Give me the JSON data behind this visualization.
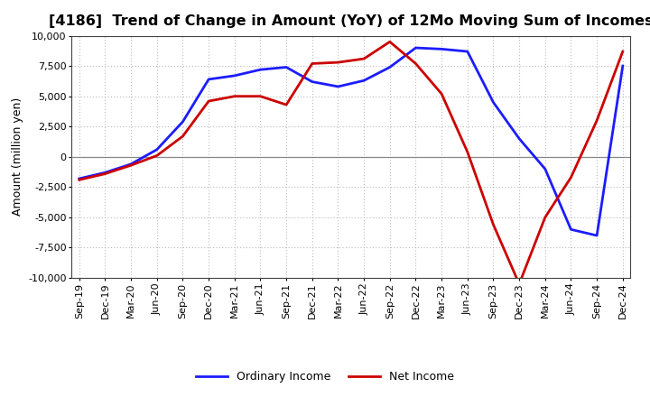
{
  "title": "[4186]  Trend of Change in Amount (YoY) of 12Mo Moving Sum of Incomes",
  "ylabel": "Amount (million yen)",
  "background_color": "#ffffff",
  "plot_background": "#ffffff",
  "grid_color": "#bbbbbb",
  "x_labels": [
    "Sep-19",
    "Dec-19",
    "Mar-20",
    "Jun-20",
    "Sep-20",
    "Dec-20",
    "Mar-21",
    "Jun-21",
    "Sep-21",
    "Dec-21",
    "Mar-22",
    "Jun-22",
    "Sep-22",
    "Dec-22",
    "Mar-23",
    "Jun-23",
    "Sep-23",
    "Dec-23",
    "Mar-24",
    "Jun-24",
    "Sep-24",
    "Dec-24"
  ],
  "ordinary_income": [
    -1800,
    -1300,
    -600,
    600,
    2900,
    6400,
    6700,
    7200,
    7400,
    6200,
    5800,
    6300,
    7400,
    9000,
    8900,
    8700,
    4500,
    1500,
    -1000,
    -6000,
    -6500,
    7500
  ],
  "net_income": [
    -1900,
    -1400,
    -700,
    100,
    1700,
    4600,
    5000,
    5000,
    4300,
    7700,
    7800,
    8100,
    9500,
    7700,
    5200,
    400,
    -5600,
    -10500,
    -5000,
    -1700,
    3000,
    8700
  ],
  "ordinary_color": "#1c1cff",
  "net_color": "#cc0000",
  "ylim": [
    -10000,
    10000
  ],
  "yticks": [
    -10000,
    -7500,
    -5000,
    -2500,
    0,
    2500,
    5000,
    7500,
    10000
  ],
  "line_width": 2.0,
  "title_fontsize": 11.5,
  "tick_fontsize": 8,
  "ylabel_fontsize": 9,
  "legend_labels": [
    "Ordinary Income",
    "Net Income"
  ],
  "legend_fontsize": 9
}
